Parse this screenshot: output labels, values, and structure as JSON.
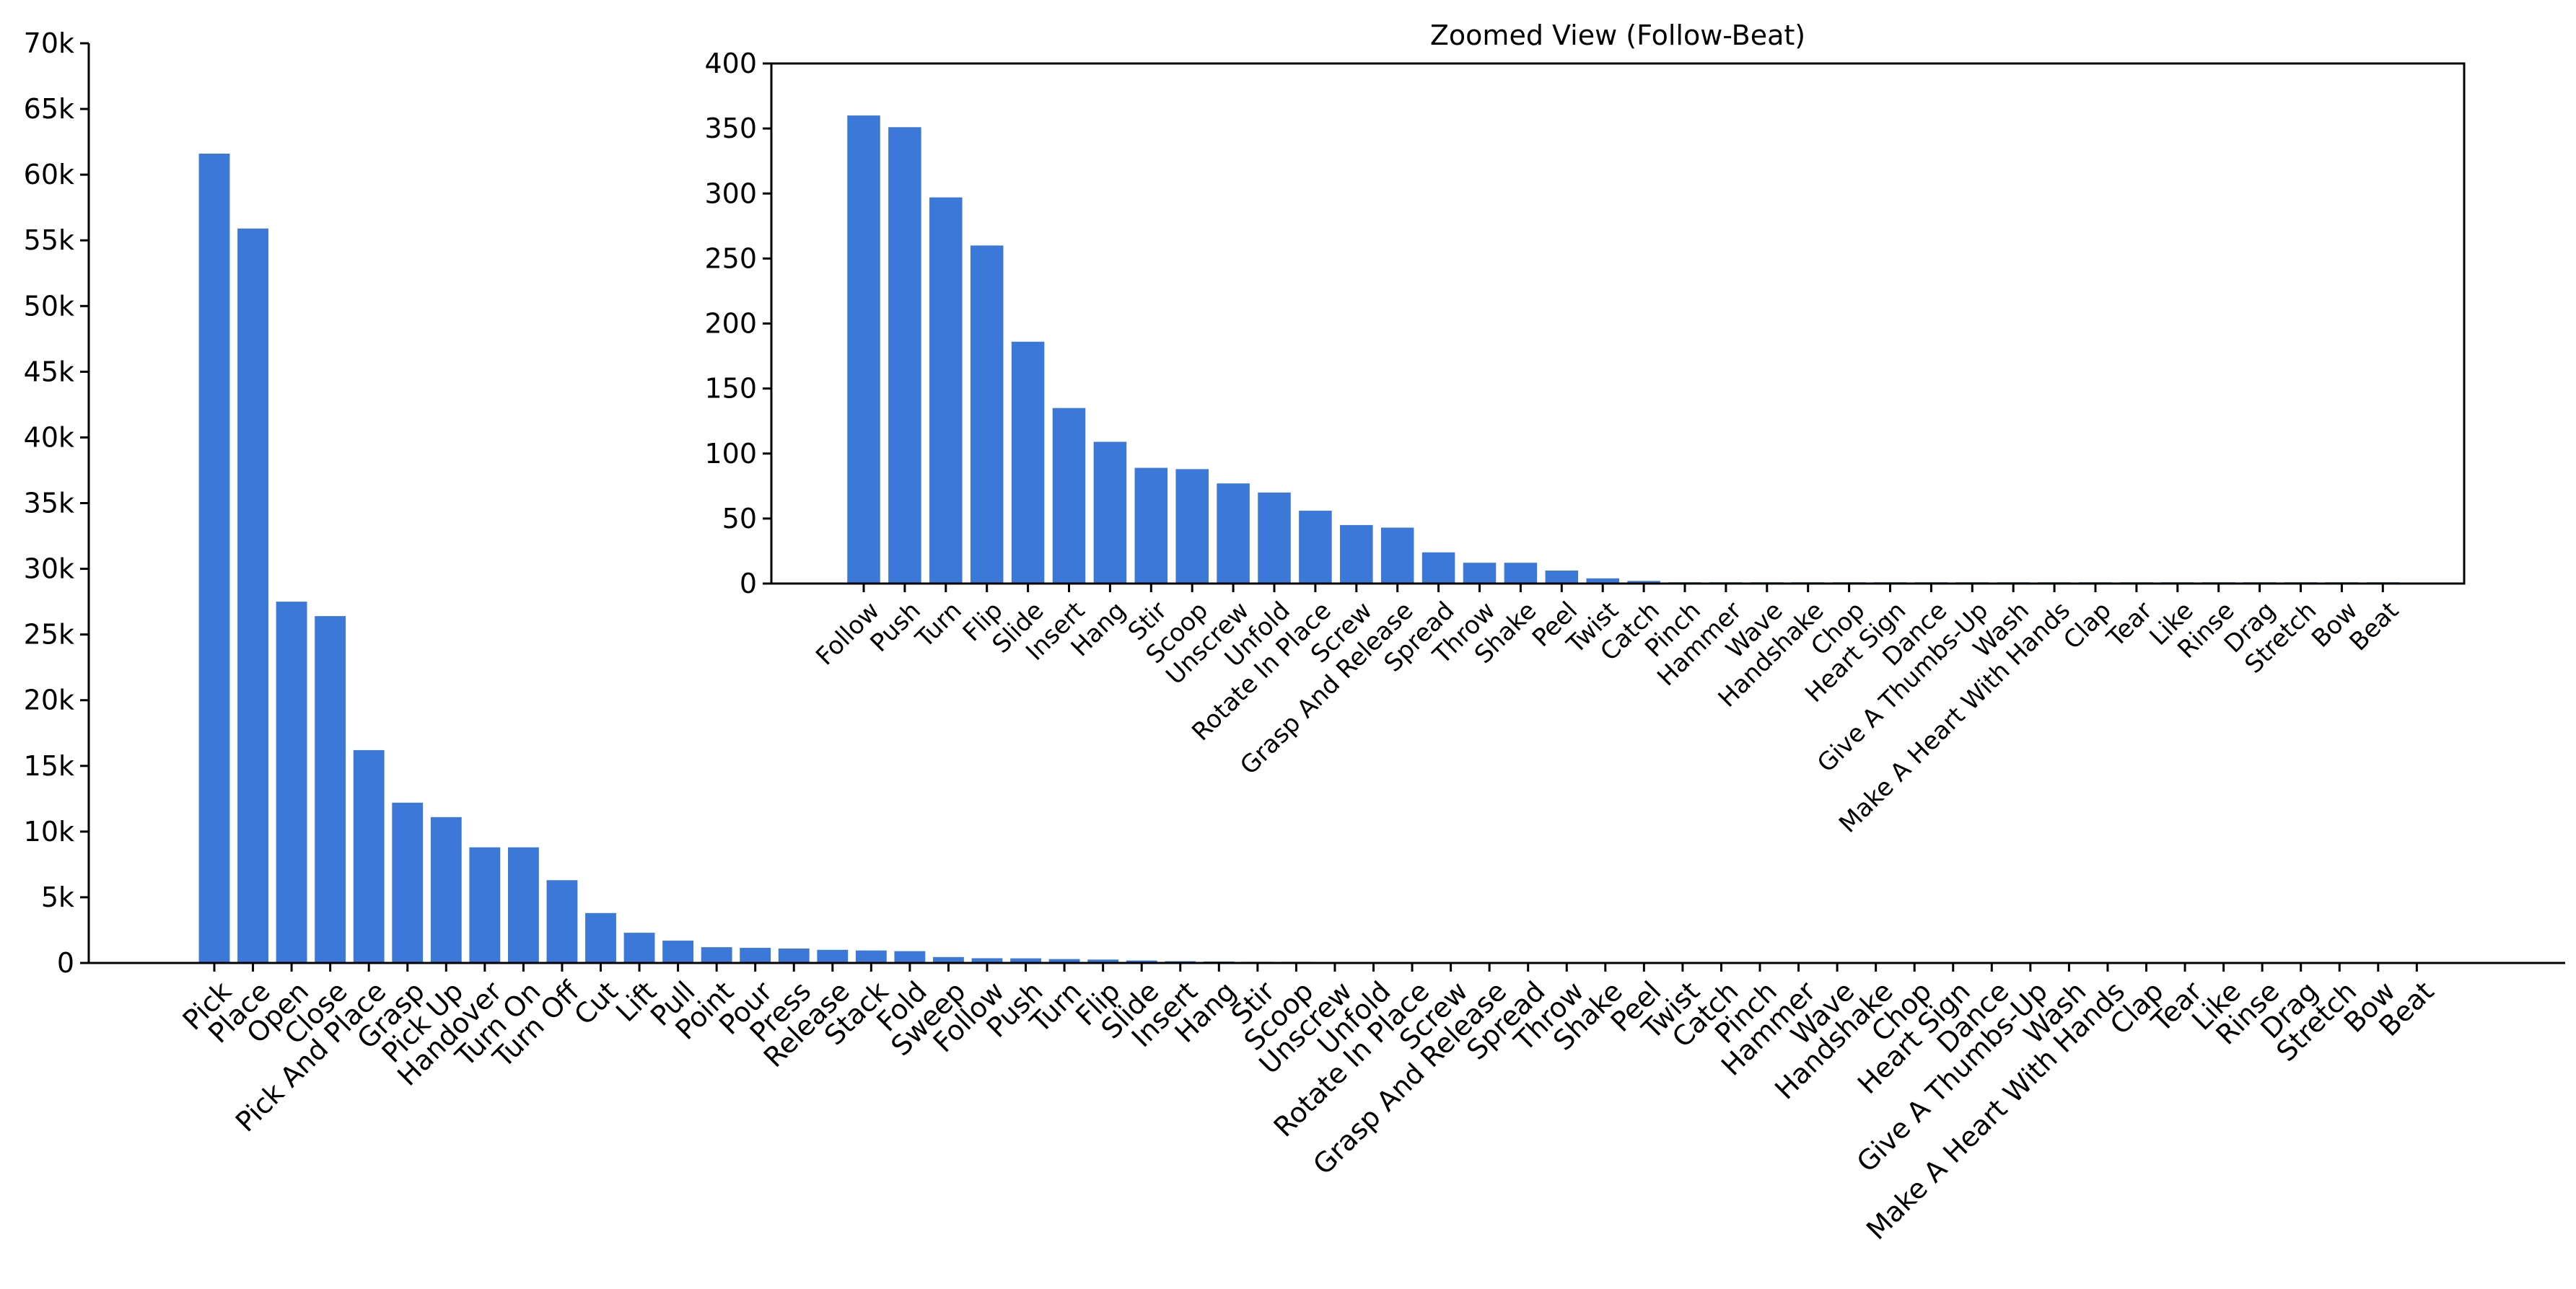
{
  "colors": {
    "bar": "#3b78d8",
    "axis": "#000000",
    "background": "#ffffff"
  },
  "chart_data": [
    {
      "type": "bar",
      "title": "",
      "xlabel": "",
      "ylabel": "",
      "ylim": [
        0,
        70000
      ],
      "yticks": [
        0,
        5000,
        10000,
        15000,
        20000,
        25000,
        30000,
        35000,
        40000,
        45000,
        50000,
        55000,
        60000,
        65000,
        70000
      ],
      "ytick_labels": [
        "0",
        "5k",
        "10k",
        "15k",
        "20k",
        "25k",
        "30k",
        "35k",
        "40k",
        "45k",
        "50k",
        "55k",
        "60k",
        "65k",
        "70k"
      ],
      "grid": false,
      "categories": [
        "Pick",
        "Place",
        "Open",
        "Close",
        "Pick And Place",
        "Grasp",
        "Pick Up",
        "Handover",
        "Turn On",
        "Turn Off",
        "Cut",
        "Lift",
        "Pull",
        "Point",
        "Pour",
        "Press",
        "Release",
        "Stack",
        "Fold",
        "Sweep",
        "Follow",
        "Push",
        "Turn",
        "Flip",
        "Slide",
        "Insert",
        "Hang",
        "Stir",
        "Scoop",
        "Unscrew",
        "Unfold",
        "Rotate In Place",
        "Screw",
        "Grasp And Release",
        "Spread",
        "Throw",
        "Shake",
        "Peel",
        "Twist",
        "Catch",
        "Pinch",
        "Hammer",
        "Wave",
        "Handshake",
        "Chop",
        "Heart Sign",
        "Dance",
        "Give A Thumbs-Up",
        "Wash",
        "Make A Heart With Hands",
        "Clap",
        "Tear",
        "Like",
        "Rinse",
        "Drag",
        "Stretch",
        "Bow",
        "Beat"
      ],
      "values": [
        61600,
        55900,
        27500,
        26400,
        16200,
        12200,
        11100,
        8800,
        8800,
        6300,
        3800,
        2300,
        1700,
        1200,
        1150,
        1100,
        1000,
        950,
        900,
        450,
        360,
        351,
        297,
        260,
        186,
        135,
        109,
        89,
        88,
        77,
        70,
        56,
        45,
        43,
        24,
        16,
        16,
        10,
        4,
        2,
        1,
        1,
        1,
        1,
        1,
        1,
        1,
        1,
        1,
        1,
        1,
        1,
        1,
        1,
        1,
        1,
        1,
        1
      ]
    },
    {
      "type": "bar",
      "title": "Zoomed View (Follow-Beat)",
      "xlabel": "",
      "ylabel": "",
      "ylim": [
        0,
        400
      ],
      "yticks": [
        0,
        50,
        100,
        150,
        200,
        250,
        300,
        350,
        400
      ],
      "ytick_labels": [
        "0",
        "50",
        "100",
        "150",
        "200",
        "250",
        "300",
        "350",
        "400"
      ],
      "grid": false,
      "categories": [
        "Follow",
        "Push",
        "Turn",
        "Flip",
        "Slide",
        "Insert",
        "Hang",
        "Stir",
        "Scoop",
        "Unscrew",
        "Unfold",
        "Rotate In Place",
        "Screw",
        "Grasp And Release",
        "Spread",
        "Throw",
        "Shake",
        "Peel",
        "Twist",
        "Catch",
        "Pinch",
        "Hammer",
        "Wave",
        "Handshake",
        "Chop",
        "Heart Sign",
        "Dance",
        "Give A Thumbs-Up",
        "Wash",
        "Make A Heart With Hands",
        "Clap",
        "Tear",
        "Like",
        "Rinse",
        "Drag",
        "Stretch",
        "Bow",
        "Beat"
      ],
      "values": [
        360,
        351,
        297,
        260,
        186,
        135,
        109,
        89,
        88,
        77,
        70,
        56,
        45,
        43,
        24,
        16,
        16,
        10,
        4,
        2,
        1,
        1,
        1,
        1,
        1,
        1,
        1,
        1,
        1,
        1,
        1,
        1,
        1,
        1,
        1,
        1,
        1,
        1
      ]
    }
  ]
}
